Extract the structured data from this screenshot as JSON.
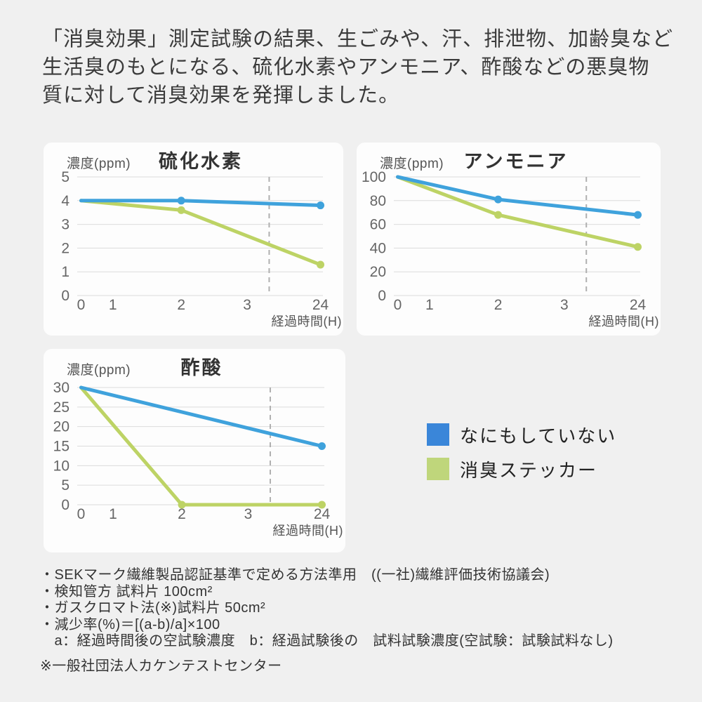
{
  "page": {
    "background_color": "#f0f0f0",
    "card_color": "#fdfdfd",
    "grid_color": "#dcdcdc",
    "dash_color": "#b0b0b0"
  },
  "header": {
    "lines": [
      "「消臭効果」測定試験の結果、生ごみや、汗、排泄物、加齢臭など",
      "生活臭のもとになる、硫化水素やアンモニア、酢酸などの悪臭物",
      "質に対して消臭効果を発揮しました。"
    ]
  },
  "legend": {
    "items": [
      {
        "label": "なにもしていない",
        "color": "#3A86D9"
      },
      {
        "label": "消臭ステッカー",
        "color": "#BFD67B"
      }
    ]
  },
  "chart_data": [
    {
      "type": "line",
      "title": "硫化水素",
      "ylabel": "濃度(ppm)",
      "xlabel": "経過時間(H)",
      "ymax": 5,
      "yticks": [
        0,
        1,
        2,
        3,
        4,
        5
      ],
      "xticks": {
        "labels": [
          "0",
          "1",
          "2",
          "3",
          "24"
        ],
        "positions": [
          0.01,
          0.14,
          0.42,
          0.69,
          0.99
        ]
      },
      "dashed_x": 0.78,
      "grid": true,
      "legend_position": "none",
      "series": [
        {
          "name": "なにもしていない",
          "color": "#3FA2DC",
          "points": [
            {
              "h": "0",
              "v": 4.0,
              "dot": false
            },
            {
              "h": "2",
              "v": 4.0,
              "dot": true
            },
            {
              "h": "24",
              "v": 3.8,
              "dot": true
            }
          ]
        },
        {
          "name": "消臭ステッカー",
          "color": "#BDD365",
          "points": [
            {
              "h": "0",
              "v": 4.0,
              "dot": false
            },
            {
              "h": "2",
              "v": 3.6,
              "dot": true
            },
            {
              "h": "24",
              "v": 1.3,
              "dot": true
            }
          ]
        }
      ]
    },
    {
      "type": "line",
      "title": "アンモニア",
      "ylabel": "濃度(ppm)",
      "xlabel": "経過時間(H)",
      "ymax": 100,
      "yticks": [
        0,
        20,
        40,
        60,
        80,
        100
      ],
      "xticks": {
        "labels": [
          "0",
          "1",
          "2",
          "3",
          "24"
        ],
        "positions": [
          0.01,
          0.14,
          0.42,
          0.69,
          0.99
        ]
      },
      "dashed_x": 0.78,
      "grid": true,
      "legend_position": "none",
      "series": [
        {
          "name": "なにもしていない",
          "color": "#3FA2DC",
          "points": [
            {
              "h": "0",
              "v": 100,
              "dot": false
            },
            {
              "h": "2",
              "v": 81,
              "dot": true
            },
            {
              "h": "24",
              "v": 68,
              "dot": true
            }
          ]
        },
        {
          "name": "消臭ステッカー",
          "color": "#BDD365",
          "points": [
            {
              "h": "0",
              "v": 100,
              "dot": false
            },
            {
              "h": "2",
              "v": 68,
              "dot": true
            },
            {
              "h": "24",
              "v": 41,
              "dot": true
            }
          ]
        }
      ]
    },
    {
      "type": "line",
      "title": "酢酸",
      "ylabel": "濃度(ppm)",
      "xlabel": "経過時間(H)",
      "ymax": 30,
      "yticks": [
        0,
        5,
        10,
        15,
        20,
        25,
        30
      ],
      "xticks": {
        "labels": [
          "0",
          "1",
          "2",
          "3",
          "24"
        ],
        "positions": [
          0.01,
          0.14,
          0.42,
          0.69,
          0.99
        ]
      },
      "dashed_x": 0.78,
      "grid": true,
      "legend_position": "none",
      "series": [
        {
          "name": "なにもしていない",
          "color": "#3FA2DC",
          "points": [
            {
              "h": "0",
              "v": 30,
              "dot": false
            },
            {
              "h": "24",
              "v": 15,
              "dot": true
            }
          ]
        },
        {
          "name": "消臭ステッカー",
          "color": "#BDD365",
          "points": [
            {
              "h": "0",
              "v": 30,
              "dot": false
            },
            {
              "h": "2",
              "v": 0,
              "dot": true
            },
            {
              "h": "24",
              "v": 0,
              "dot": true
            }
          ]
        }
      ]
    }
  ],
  "footnotes": {
    "lines": [
      "・SEKマーク繊維製品認証基準で定める方法準用　((一社)繊維評価技術協議会)",
      "・検知管方 試料片 100cm²",
      "・ガスクロマト法(※)試料片 50cm²",
      "・減少率(%)＝[(a-b)/a]×100",
      "　a：経過時間後の空試験濃度　b：経過試験後の　試料試験濃度(空試験：試験試料なし)"
    ],
    "source_note": "※一般社団法人カケンテストセンター"
  }
}
